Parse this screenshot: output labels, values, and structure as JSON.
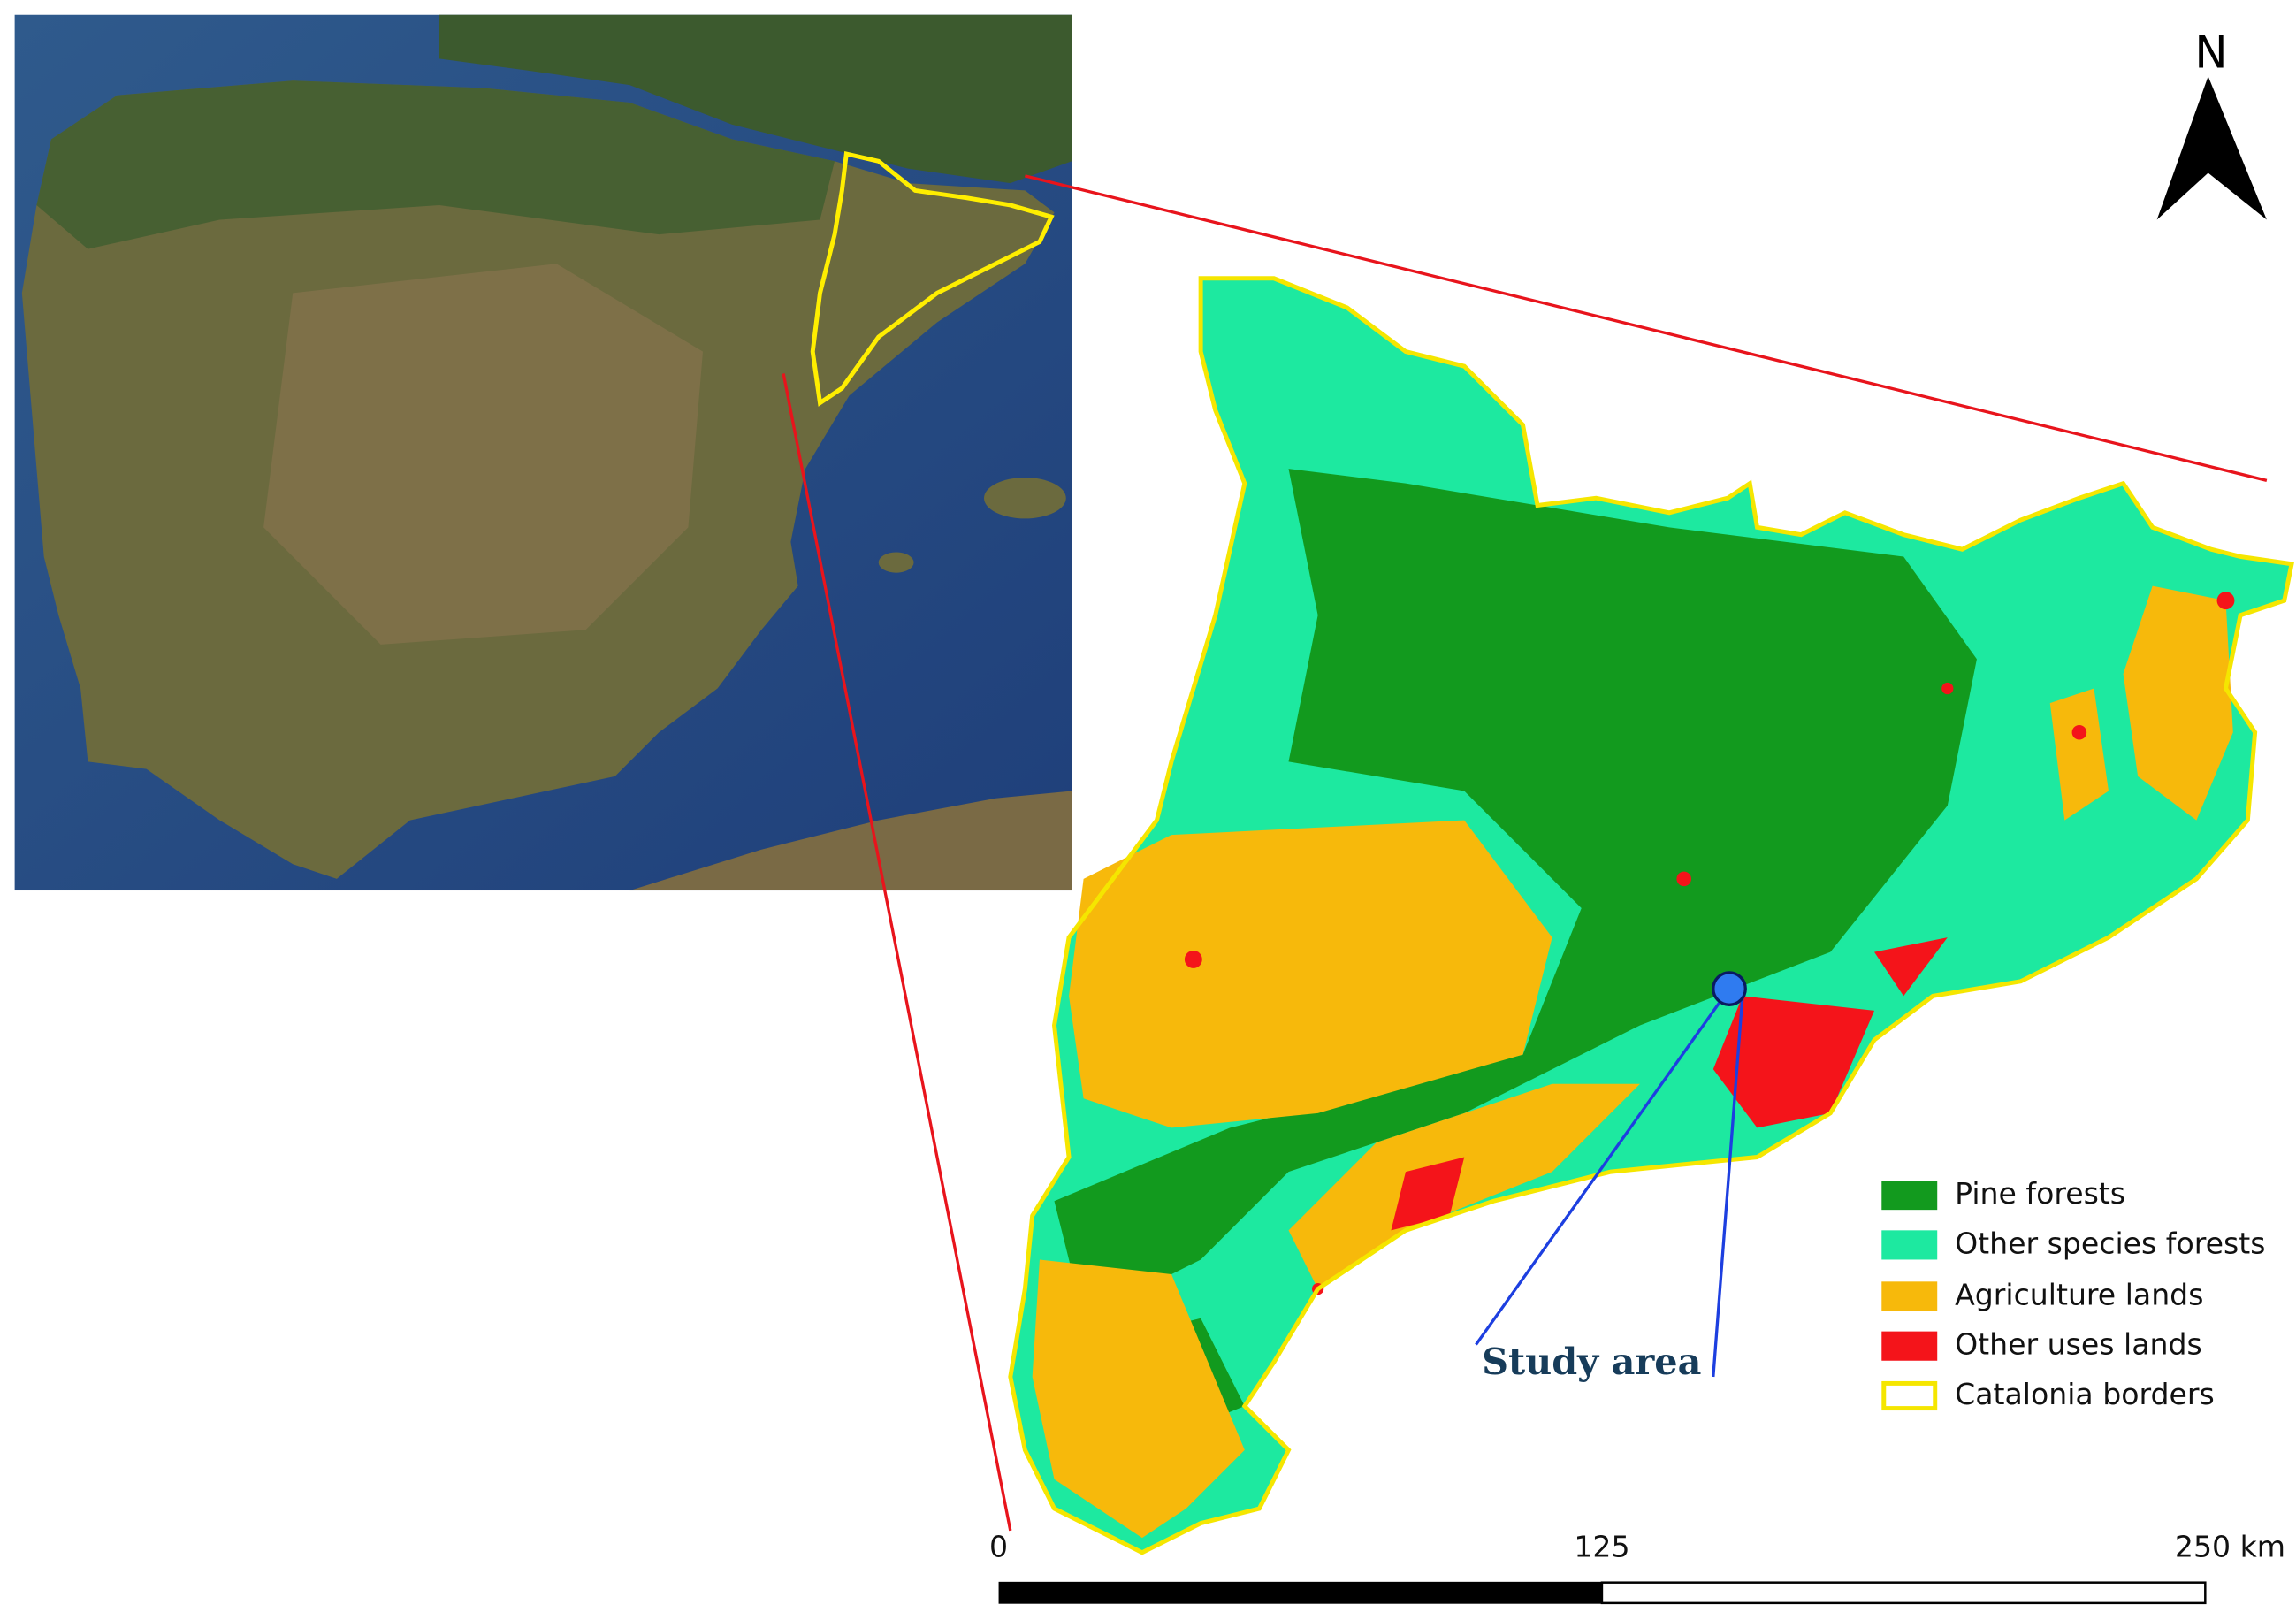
{
  "north_label": "N",
  "legend": {
    "items": [
      "Pine forests",
      "Other species forests",
      "Agriculture lands",
      "Other uses lands",
      "Catalonia borders"
    ]
  },
  "annotation": "Study area",
  "scale_bar": {
    "labels": [
      "0",
      "125",
      "250 km"
    ]
  }
}
